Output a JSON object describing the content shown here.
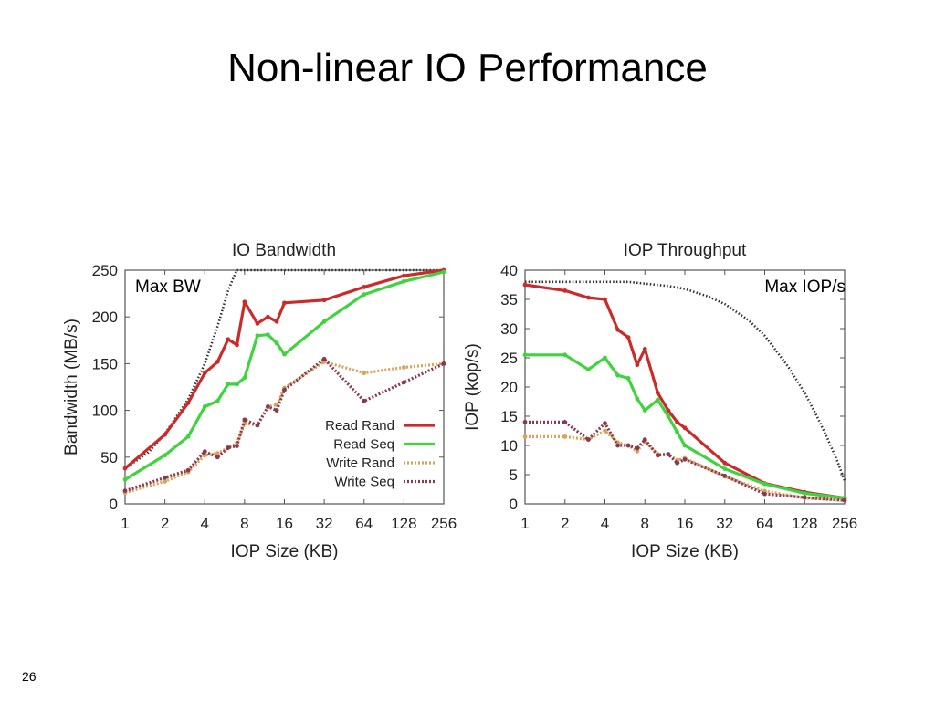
{
  "slide": {
    "title": "Non-linear IO Performance",
    "number": "26"
  },
  "colors": {
    "read_rand": "#cc2a2a",
    "read_seq": "#3fd43f",
    "write_rand": "#d8a45c",
    "write_seq": "#8a3a50",
    "max": "#333333"
  },
  "chart_data": [
    {
      "type": "line",
      "title": "IO Bandwidth",
      "xlabel": "IOP Size (KB)",
      "ylabel": "Bandwidth (MB/s)",
      "x_scale": "log2",
      "x_ticks": [
        "1",
        "2",
        "4",
        "8",
        "16",
        "32",
        "64",
        "128",
        "256"
      ],
      "xlim": [
        1,
        256
      ],
      "ylim": [
        0,
        250
      ],
      "y_ticks": [
        "0",
        "50",
        "100",
        "150",
        "200",
        "250"
      ],
      "annotation": "Max BW",
      "legend_position": "bottom-right",
      "max_curve": {
        "x": [
          1,
          1.5,
          2,
          3,
          4,
          5,
          6,
          6.5,
          7,
          8,
          16,
          32,
          64,
          128,
          256
        ],
        "y": [
          38,
          55,
          75,
          112,
          150,
          190,
          228,
          240,
          250,
          250,
          250,
          250,
          250,
          250,
          250
        ]
      },
      "series": [
        {
          "name": "Read Rand",
          "x": [
            1,
            2,
            3,
            4,
            5,
            6,
            7,
            8,
            10,
            12,
            14,
            16,
            32,
            64,
            128,
            256
          ],
          "y": [
            38,
            74,
            108,
            140,
            152,
            176,
            170,
            216,
            193,
            200,
            195,
            215,
            218,
            232,
            244,
            250
          ]
        },
        {
          "name": "Read Seq",
          "x": [
            1,
            2,
            3,
            4,
            5,
            6,
            7,
            8,
            10,
            12,
            14,
            16,
            32,
            64,
            128,
            256
          ],
          "y": [
            26,
            52,
            72,
            104,
            110,
            128,
            128,
            135,
            180,
            181,
            172,
            160,
            195,
            224,
            238,
            248
          ]
        },
        {
          "name": "Write Rand",
          "x": [
            1,
            2,
            3,
            4,
            5,
            6,
            7,
            8,
            10,
            12,
            14,
            16,
            32,
            64,
            128,
            256
          ],
          "y": [
            12,
            24,
            34,
            52,
            54,
            60,
            65,
            86,
            84,
            104,
            106,
            124,
            152,
            140,
            146,
            150
          ]
        },
        {
          "name": "Write Seq",
          "x": [
            1,
            2,
            3,
            4,
            5,
            6,
            7,
            8,
            10,
            12,
            14,
            16,
            32,
            64,
            128,
            256
          ],
          "y": [
            14,
            28,
            36,
            56,
            50,
            60,
            62,
            90,
            84,
            104,
            100,
            122,
            155,
            110,
            130,
            150
          ]
        }
      ]
    },
    {
      "type": "line",
      "title": "IOP Throughput",
      "xlabel": "IOP Size (KB)",
      "ylabel": "IOP (kop/s)",
      "x_scale": "log2",
      "x_ticks": [
        "1",
        "2",
        "4",
        "8",
        "16",
        "32",
        "64",
        "128",
        "256"
      ],
      "xlim": [
        1,
        256
      ],
      "ylim": [
        0,
        40
      ],
      "y_ticks": [
        "0",
        "5",
        "10",
        "15",
        "20",
        "25",
        "30",
        "35",
        "40"
      ],
      "annotation": "Max IOP/s",
      "max_curve": {
        "x": [
          1,
          2,
          4,
          6,
          8,
          12,
          16,
          24,
          32,
          48,
          64,
          96,
          128,
          160,
          192,
          224,
          256
        ],
        "y": [
          38,
          38,
          38,
          38,
          37.7,
          37.3,
          36.8,
          35.5,
          34.2,
          31.5,
          28.8,
          23.5,
          19,
          14.8,
          11,
          7.5,
          4
        ]
      },
      "series": [
        {
          "name": "Read Rand",
          "x": [
            1,
            2,
            3,
            4,
            5,
            6,
            7,
            8,
            10,
            12,
            14,
            16,
            32,
            64,
            128,
            256
          ],
          "y": [
            37.5,
            36.5,
            35.3,
            35,
            29.8,
            28.5,
            23.8,
            26.5,
            19,
            16,
            14,
            13,
            7,
            3.5,
            2,
            1
          ]
        },
        {
          "name": "Read Seq",
          "x": [
            1,
            2,
            3,
            4,
            5,
            6,
            7,
            8,
            10,
            12,
            14,
            16,
            32,
            64,
            128,
            256
          ],
          "y": [
            25.5,
            25.5,
            23,
            25,
            22,
            21.5,
            18,
            16,
            17.8,
            15,
            12.3,
            10,
            6,
            3.4,
            1.8,
            1
          ]
        },
        {
          "name": "Write Rand",
          "x": [
            1,
            2,
            3,
            4,
            5,
            6,
            7,
            8,
            10,
            12,
            14,
            16,
            32,
            64,
            128,
            256
          ],
          "y": [
            11.5,
            11.5,
            11,
            12.5,
            10.5,
            10,
            9,
            10.7,
            8.5,
            8.5,
            7.5,
            7.8,
            4.7,
            2.2,
            1,
            0.6
          ]
        },
        {
          "name": "Write Seq",
          "x": [
            1,
            2,
            3,
            4,
            5,
            6,
            7,
            8,
            10,
            12,
            14,
            16,
            32,
            64,
            128,
            256
          ],
          "y": [
            14,
            14,
            11,
            13.8,
            10,
            10,
            9.5,
            11,
            8.3,
            8.5,
            7,
            7.6,
            4.8,
            1.7,
            1.1,
            0.6
          ]
        }
      ]
    }
  ]
}
